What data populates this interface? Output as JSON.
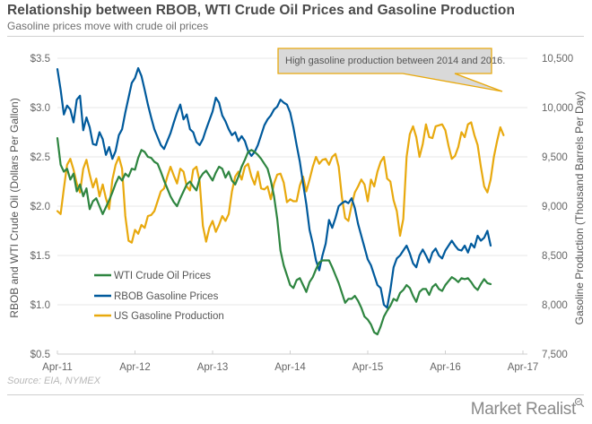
{
  "header": {
    "title": "Relationship between RBOB, WTI Crude Oil Prices and Gasoline Production",
    "subtitle": "Gasoline prices move with crude oil prices"
  },
  "footer": {
    "source": "Source: EIA, NYMEX",
    "brand": "Market Realist",
    "brand_icon": "magnifier-chart-icon"
  },
  "colors": {
    "wti": "#2e8540",
    "rbob": "#005a9c",
    "production": "#e8a90e",
    "grid": "#ececec",
    "callout_fill": "#d9d9d9",
    "callout_border": "#e8a90e"
  },
  "chart_data": {
    "type": "line",
    "title": "Relationship between RBOB, WTI Crude Oil Prices and Gasoline Production",
    "subtitle": "Gasoline prices move with crude oil prices",
    "xlabel": "",
    "ylabel_left": "RBOB and WTI Crude Oil (Dollars Per Gallon)",
    "ylabel_right": "Gasoline Production (Thousand Barrels Per Day)",
    "x_tick_labels": [
      "Apr-11",
      "Apr-12",
      "Apr-13",
      "Apr-14",
      "Apr-15",
      "Apr-16",
      "Apr-17"
    ],
    "x_range_months": [
      0,
      72
    ],
    "y_left_ticks": [
      "$0.5",
      "$1.0",
      "$1.5",
      "$2.0",
      "$2.5",
      "$3.0",
      "$3.5"
    ],
    "y_left_range": [
      0.5,
      3.5
    ],
    "y_right_ticks": [
      "7,500",
      "8,000",
      "8,500",
      "9,000",
      "9,500",
      "10,000",
      "10,500"
    ],
    "y_right_range": [
      7500,
      10500
    ],
    "grid": true,
    "legend_position": "bottom-left",
    "annotation": "High gasoline production between 2014 and 2016.",
    "series": [
      {
        "name": "WTI Crude Oil Prices",
        "axis": "left",
        "color": "#2e8540",
        "x_months": [
          0,
          0.5,
          1,
          1.5,
          2,
          2.5,
          3,
          3.5,
          4,
          4.5,
          5,
          5.5,
          6,
          6.5,
          7,
          7.5,
          8,
          8.5,
          9,
          9.5,
          10,
          10.5,
          11,
          11.5,
          12,
          12.5,
          13,
          13.5,
          14,
          14.5,
          15,
          15.5,
          16,
          16.5,
          17,
          17.5,
          18,
          18.5,
          19,
          19.5,
          20,
          20.5,
          21,
          21.5,
          22,
          22.5,
          23,
          23.5,
          24,
          24.5,
          25,
          25.5,
          26,
          26.5,
          27,
          27.5,
          28,
          28.5,
          29,
          29.5,
          30,
          30.5,
          31,
          31.5,
          32,
          32.5,
          33,
          33.5,
          34,
          34.5,
          35,
          35.5,
          36,
          36.5,
          37,
          37.5,
          38,
          38.5,
          39,
          39.5,
          40,
          40.5,
          41,
          41.5,
          42,
          42.5,
          43,
          43.5,
          44,
          44.5,
          45,
          45.5,
          46,
          46.5,
          47,
          47.5,
          48,
          48.5,
          49,
          49.5,
          50,
          50.5,
          51,
          51.5,
          52,
          52.5,
          53,
          53.5,
          54,
          54.5,
          55,
          55.5,
          56,
          56.5,
          57,
          57.5,
          58,
          58.5,
          59,
          59.5,
          60,
          60.5,
          61,
          61.5,
          62,
          62.5,
          63,
          63.5,
          64,
          64.5,
          65,
          65.5,
          66,
          66.5,
          67,
          67.5,
          68,
          68.5,
          69,
          69.5,
          70,
          70.5,
          71,
          71.5,
          72
        ],
        "values": [
          2.69,
          2.42,
          2.35,
          2.38,
          2.27,
          2.33,
          2.15,
          2.22,
          2.1,
          2.18,
          1.97,
          2.05,
          2.08,
          2.0,
          1.92,
          1.99,
          2.06,
          2.14,
          2.23,
          2.3,
          2.26,
          2.33,
          2.3,
          2.38,
          2.37,
          2.49,
          2.57,
          2.55,
          2.5,
          2.49,
          2.45,
          2.43,
          2.35,
          2.26,
          2.18,
          2.1,
          2.04,
          2.0,
          2.08,
          2.15,
          2.22,
          2.25,
          2.2,
          2.16,
          2.28,
          2.33,
          2.36,
          2.31,
          2.26,
          2.34,
          2.4,
          2.38,
          2.29,
          2.35,
          2.26,
          2.22,
          2.3,
          2.4,
          2.47,
          2.55,
          2.57,
          2.55,
          2.52,
          2.48,
          2.43,
          2.38,
          2.26,
          2.1,
          1.87,
          1.55,
          1.4,
          1.3,
          1.2,
          1.17,
          1.25,
          1.27,
          1.2,
          1.13,
          1.23,
          1.28,
          1.36,
          1.43,
          1.45,
          1.45,
          1.45,
          1.38,
          1.3,
          1.22,
          1.12,
          1.02,
          1.06,
          1.06,
          1.09,
          1.04,
          0.97,
          0.88,
          0.85,
          0.8,
          0.72,
          0.7,
          0.78,
          0.88,
          0.94,
          0.99,
          1.06,
          1.04,
          1.12,
          1.15,
          1.2,
          1.17,
          1.09,
          1.03,
          1.13,
          1.16,
          1.16,
          1.1,
          1.18,
          1.21,
          1.16,
          1.14,
          1.2,
          1.24,
          1.28,
          1.26,
          1.23,
          1.27,
          1.26,
          1.27,
          1.23,
          1.18,
          1.15,
          1.21,
          1.26,
          1.22,
          1.21
        ]
      },
      {
        "name": "RBOB Gasoline Prices",
        "axis": "left",
        "color": "#005a9c",
        "x_months": [
          0,
          0.5,
          1,
          1.5,
          2,
          2.5,
          3,
          3.5,
          4,
          4.5,
          5,
          5.5,
          6,
          6.5,
          7,
          7.5,
          8,
          8.5,
          9,
          9.5,
          10,
          10.5,
          11,
          11.5,
          12,
          12.5,
          13,
          13.5,
          14,
          14.5,
          15,
          15.5,
          16,
          16.5,
          17,
          17.5,
          18,
          18.5,
          19,
          19.5,
          20,
          20.5,
          21,
          21.5,
          22,
          22.5,
          23,
          23.5,
          24,
          24.5,
          25,
          25.5,
          26,
          26.5,
          27,
          27.5,
          28,
          28.5,
          29,
          29.5,
          30,
          30.5,
          31,
          31.5,
          32,
          32.5,
          33,
          33.5,
          34,
          34.5,
          35,
          35.5,
          36,
          36.5,
          37,
          37.5,
          38,
          38.5,
          39,
          39.5,
          40,
          40.5,
          41,
          41.5,
          42,
          42.5,
          43,
          43.5,
          44,
          44.5,
          45,
          45.5,
          46,
          46.5,
          47,
          47.5,
          48,
          48.5,
          49,
          49.5,
          50,
          50.5,
          51,
          51.5,
          52,
          52.5,
          53,
          53.5,
          54,
          54.5,
          55,
          55.5,
          56,
          56.5,
          57,
          57.5,
          58,
          58.5,
          59,
          59.5,
          60,
          60.5,
          61,
          61.5,
          62,
          62.5,
          63,
          63.5,
          64,
          64.5,
          65,
          65.5,
          66,
          66.5,
          67,
          67.5,
          68,
          68.5,
          69,
          69.5,
          70,
          70.5,
          71,
          71.5,
          72
        ],
        "values": [
          3.39,
          3.18,
          2.93,
          3.02,
          2.98,
          2.85,
          3.08,
          3.12,
          2.77,
          2.9,
          2.8,
          2.63,
          2.62,
          2.75,
          2.68,
          2.52,
          2.6,
          2.48,
          2.56,
          2.72,
          2.78,
          2.95,
          3.1,
          3.25,
          3.3,
          3.4,
          3.32,
          3.18,
          3.03,
          2.9,
          2.78,
          2.7,
          2.62,
          2.58,
          2.66,
          2.74,
          2.85,
          2.95,
          3.03,
          2.88,
          2.93,
          2.78,
          2.75,
          2.65,
          2.62,
          2.68,
          2.78,
          2.87,
          2.96,
          3.1,
          3.05,
          2.92,
          2.86,
          2.78,
          2.72,
          2.75,
          2.66,
          2.71,
          2.66,
          2.56,
          2.51,
          2.55,
          2.62,
          2.72,
          2.82,
          2.88,
          2.92,
          2.98,
          3.01,
          3.08,
          3.05,
          3.03,
          2.95,
          2.8,
          2.62,
          2.45,
          2.23,
          2.02,
          1.76,
          1.62,
          1.45,
          1.35,
          1.5,
          1.62,
          1.86,
          1.78,
          1.88,
          2.0,
          2.03,
          2.05,
          2.03,
          2.08,
          1.98,
          1.82,
          1.7,
          1.58,
          1.46,
          1.4,
          1.3,
          1.2,
          1.17,
          1.0,
          0.97,
          1.15,
          1.38,
          1.47,
          1.5,
          1.55,
          1.6,
          1.52,
          1.42,
          1.38,
          1.5,
          1.56,
          1.5,
          1.43,
          1.53,
          1.57,
          1.5,
          1.47,
          1.55,
          1.6,
          1.65,
          1.6,
          1.56,
          1.55,
          1.6,
          1.53,
          1.62,
          1.58,
          1.7,
          1.65,
          1.68,
          1.75,
          1.6
        ]
      },
      {
        "name": "US Gasoline Production",
        "axis": "right",
        "color": "#e8a90e",
        "x_months": [
          0,
          0.5,
          1,
          1.5,
          2,
          2.5,
          3,
          3.5,
          4,
          4.5,
          5,
          5.5,
          6,
          6.5,
          7,
          7.5,
          8,
          8.5,
          9,
          9.5,
          10,
          10.5,
          11,
          11.5,
          12,
          12.5,
          13,
          13.5,
          14,
          14.5,
          15,
          15.5,
          16,
          16.5,
          17,
          17.5,
          18,
          18.5,
          19,
          19.5,
          20,
          20.5,
          21,
          21.5,
          22,
          22.5,
          23,
          23.5,
          24,
          24.5,
          25,
          25.5,
          26,
          26.5,
          27,
          27.5,
          28,
          28.5,
          29,
          29.5,
          30,
          30.5,
          31,
          31.5,
          32,
          32.5,
          33,
          33.5,
          34,
          34.5,
          35,
          35.5,
          36,
          36.5,
          37,
          37.5,
          38,
          38.5,
          39,
          39.5,
          40,
          40.5,
          41,
          41.5,
          42,
          42.5,
          43,
          43.5,
          44,
          44.5,
          45,
          45.5,
          46,
          46.5,
          47,
          47.5,
          48,
          48.5,
          49,
          49.5,
          50,
          50.5,
          51,
          51.5,
          52,
          52.5,
          53,
          53.5,
          54,
          54.5,
          55,
          55.5,
          56,
          56.5,
          57,
          57.5,
          58,
          58.5,
          59,
          59.5,
          60,
          60.5,
          61,
          61.5,
          62,
          62.5,
          63,
          63.5,
          64,
          64.5,
          65,
          65.5,
          66,
          66.5,
          67,
          67.5,
          68,
          68.5,
          69,
          69.5,
          70,
          70.5,
          71,
          71.5,
          72
        ],
        "values": [
          8950,
          8920,
          9180,
          9420,
          9480,
          9370,
          9230,
          9140,
          9380,
          9470,
          9320,
          9190,
          9280,
          9100,
          9220,
          9080,
          8970,
          9270,
          9420,
          9500,
          9380,
          8900,
          8650,
          8630,
          8760,
          8720,
          8810,
          8780,
          8900,
          8910,
          8950,
          9050,
          9150,
          9180,
          9300,
          9400,
          9310,
          9230,
          9380,
          9350,
          9200,
          9160,
          9370,
          9400,
          9250,
          8800,
          8640,
          8780,
          8850,
          8740,
          8810,
          8900,
          8850,
          8920,
          9150,
          9300,
          9350,
          9270,
          9400,
          9430,
          9300,
          9220,
          9350,
          9180,
          9170,
          9200,
          9070,
          9230,
          9320,
          9330,
          9240,
          9040,
          9070,
          9050,
          9050,
          9210,
          9300,
          9150,
          9270,
          9400,
          9500,
          9430,
          9470,
          9480,
          9420,
          9500,
          9530,
          9400,
          9090,
          8880,
          8850,
          9010,
          9140,
          9200,
          9270,
          9220,
          9050,
          9270,
          9200,
          9350,
          9450,
          9500,
          9280,
          9250,
          9060,
          8950,
          8700,
          8870,
          9500,
          9730,
          9810,
          9700,
          9500,
          9630,
          9830,
          9700,
          9690,
          9810,
          9820,
          9830,
          9770,
          9610,
          9480,
          9510,
          9600,
          9750,
          9700,
          9830,
          9850,
          9720,
          9620,
          9400,
          9200,
          9140,
          9270,
          9500,
          9660,
          9800,
          9720
        ]
      }
    ]
  }
}
